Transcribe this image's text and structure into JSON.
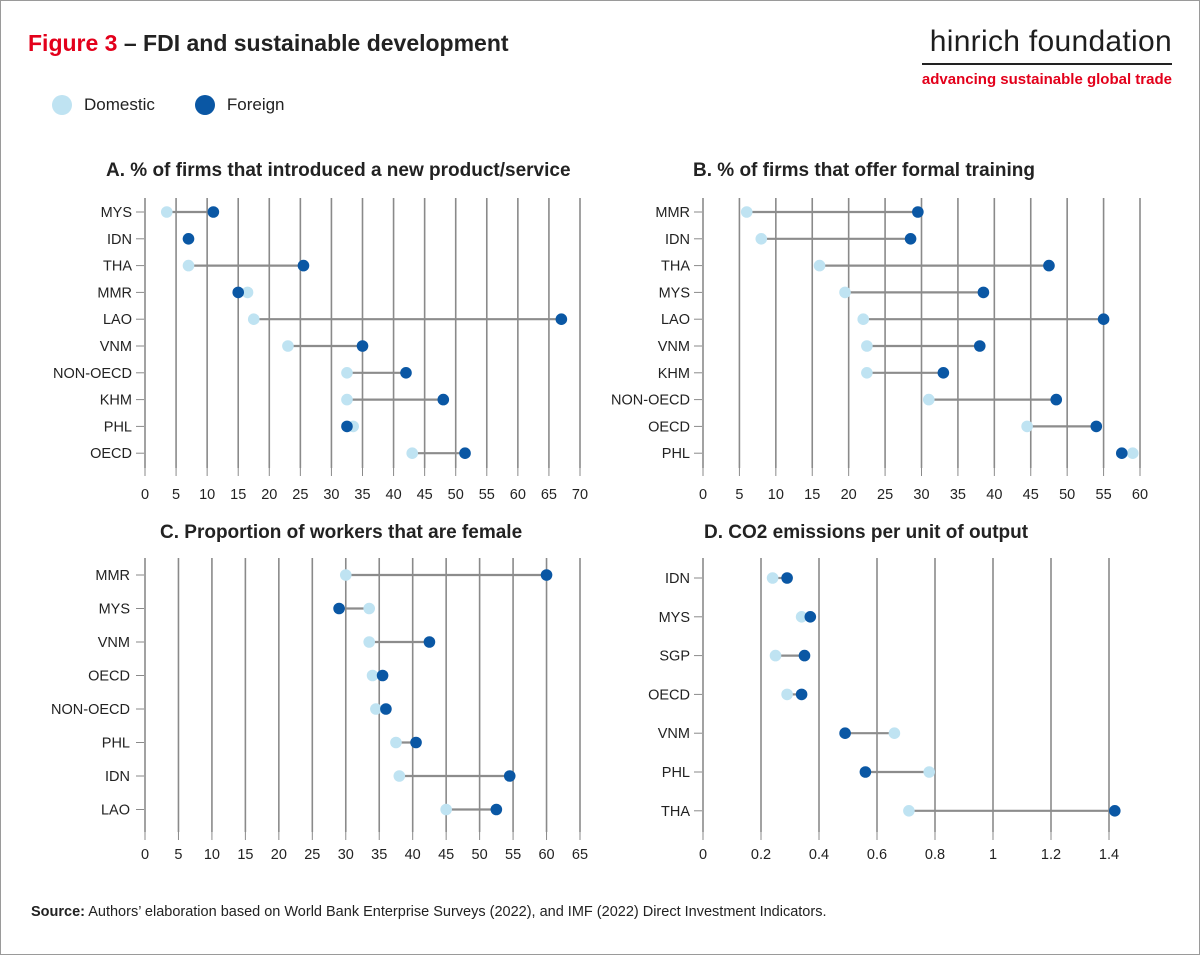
{
  "header": {
    "figure_label": "Figure 3",
    "title_rest": " – FDI and sustainable development",
    "brand_name": "hinrich foundation",
    "brand_tagline": "advancing sustainable global trade"
  },
  "legend": {
    "domestic": {
      "label": "Domestic",
      "color": "#bfe3f2"
    },
    "foreign": {
      "label": "Foreign",
      "color": "#0a57a4"
    }
  },
  "source": {
    "label": "Source:",
    "text": " Authors’ elaboration based on World Bank Enterprise Surveys (2022), and IMF (2022) Direct Investment Indicators."
  },
  "chart_data": [
    {
      "type": "dumbbell",
      "title": "A. % of firms that introduced a new product/service",
      "xlim": [
        0,
        70
      ],
      "xticks": [
        "0",
        "5",
        "10",
        "15",
        "20",
        "25",
        "30",
        "35",
        "40",
        "45",
        "50",
        "55",
        "60",
        "65",
        "70"
      ],
      "grid": "vertical",
      "categories": [
        "MYS",
        "IDN",
        "THA",
        "MMR",
        "LAO",
        "VNM",
        "NON-OECD",
        "KHM",
        "PHL",
        "OECD"
      ],
      "series": [
        {
          "name": "Domestic",
          "values": [
            3.5,
            7,
            7,
            16.5,
            17.5,
            23,
            32.5,
            32.5,
            33.5,
            43
          ]
        },
        {
          "name": "Foreign",
          "values": [
            11,
            7,
            25.5,
            15,
            67,
            35,
            42,
            48,
            32.5,
            51.5
          ]
        }
      ]
    },
    {
      "type": "dumbbell",
      "title": "B. % of firms that offer formal training",
      "xlim": [
        0,
        60
      ],
      "xticks": [
        "0",
        "5",
        "10",
        "15",
        "20",
        "25",
        "30",
        "35",
        "40",
        "45",
        "50",
        "55",
        "60"
      ],
      "grid": "vertical",
      "categories": [
        "MMR",
        "IDN",
        "THA",
        "MYS",
        "LAO",
        "VNM",
        "KHM",
        "NON-OECD",
        "OECD",
        "PHL"
      ],
      "series": [
        {
          "name": "Domestic",
          "values": [
            6,
            8,
            16,
            19.5,
            22,
            22.5,
            22.5,
            31,
            44.5,
            59
          ]
        },
        {
          "name": "Foreign",
          "values": [
            29.5,
            28.5,
            47.5,
            38.5,
            55,
            38,
            33,
            48.5,
            54,
            57.5
          ]
        }
      ]
    },
    {
      "type": "dumbbell",
      "title": "C. Proportion of workers that are female",
      "xlim": [
        0,
        65
      ],
      "xticks": [
        "0",
        "5",
        "10",
        "15",
        "20",
        "25",
        "30",
        "35",
        "40",
        "45",
        "50",
        "55",
        "60",
        "65"
      ],
      "grid": "vertical",
      "categories": [
        "MMR",
        "MYS",
        "VNM",
        "OECD",
        "NON-OECD",
        "PHL",
        "IDN",
        "LAO"
      ],
      "series": [
        {
          "name": "Domestic",
          "values": [
            30,
            33.5,
            33.5,
            34,
            34.5,
            37.5,
            38,
            45
          ]
        },
        {
          "name": "Foreign",
          "values": [
            60,
            29,
            42.5,
            35.5,
            36,
            40.5,
            54.5,
            52.5
          ]
        }
      ]
    },
    {
      "type": "dumbbell",
      "title": "D. CO2 emissions per unit of output",
      "xlim": [
        0,
        1.4
      ],
      "xticks": [
        "0",
        "0.2",
        "0.4",
        "0.6",
        "0.8",
        "1",
        "1.2",
        "1.4"
      ],
      "grid": "vertical",
      "categories": [
        "IDN",
        "MYS",
        "SGP",
        "OECD",
        "VNM",
        "PHL",
        "THA"
      ],
      "series": [
        {
          "name": "Domestic",
          "values": [
            0.24,
            0.34,
            0.25,
            0.29,
            0.66,
            0.78,
            0.71
          ]
        },
        {
          "name": "Foreign",
          "values": [
            0.29,
            0.37,
            0.35,
            0.34,
            0.49,
            0.56,
            1.42
          ]
        }
      ]
    }
  ]
}
